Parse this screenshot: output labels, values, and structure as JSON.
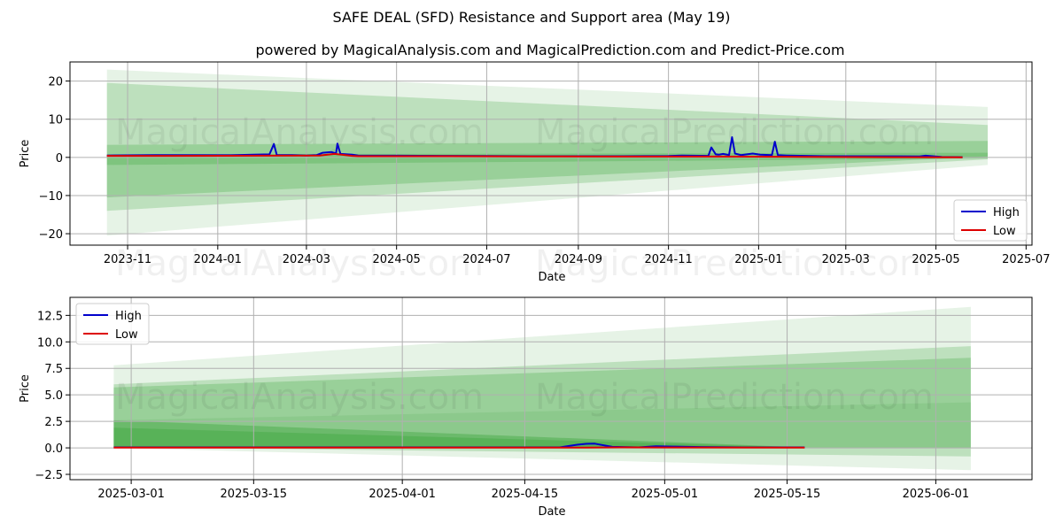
{
  "title": "SAFE DEAL (SFD) Resistance and Support area (May 19)",
  "subtitle": "powered by MagicalAnalysis.com and MagicalPrediction.com and Predict-Price.com",
  "watermarks": [
    "MagicalAnalysis.com",
    "MagicalPrediction.com"
  ],
  "colors": {
    "high": "#0000cc",
    "low": "#dd0000",
    "band": "#2e9e2e",
    "grid": "#b0b0b0"
  },
  "chart_data": [
    {
      "type": "line",
      "xlabel": "Date",
      "ylabel": "Price",
      "xlim": [
        "2023-09-23",
        "2025-07-05"
      ],
      "ylim": [
        -23,
        25
      ],
      "x_ticks": [
        "2023-11-01",
        "2024-01-01",
        "2024-03-01",
        "2024-05-01",
        "2024-07-01",
        "2024-09-01",
        "2024-11-01",
        "2025-01-01",
        "2025-03-01",
        "2025-05-01",
        "2025-07-01"
      ],
      "x_tick_labels": [
        "2023-11",
        "2024-01",
        "2024-03",
        "2024-05",
        "2024-07",
        "2024-09",
        "2024-11",
        "2025-01",
        "2025-03",
        "2025-05",
        "2025-07"
      ],
      "y_ticks": [
        -20,
        -10,
        0,
        10,
        20
      ],
      "y_tick_labels": [
        "−20",
        "−10",
        "0",
        "10",
        "20"
      ],
      "legend": "lower-right",
      "grid": true,
      "bands": [
        {
          "x0": "2023-10-18",
          "x1": "2025-06-05",
          "top0": 23.0,
          "top1": 13.2,
          "bot0": -20.5,
          "bot1": -2.0,
          "opacity": 0.12
        },
        {
          "x0": "2023-10-18",
          "x1": "2025-06-05",
          "top0": 19.5,
          "top1": 8.5,
          "bot0": -14.0,
          "bot1": -0.5,
          "opacity": 0.22
        },
        {
          "x0": "2023-10-18",
          "x1": "2025-06-05",
          "top0": 3.3,
          "top1": 4.3,
          "bot0": -10.5,
          "bot1": 0.2,
          "opacity": 0.25
        },
        {
          "x0": "2023-10-18",
          "x1": "2025-06-05",
          "top0": 0.8,
          "top1": 1.2,
          "bot0": -2.0,
          "bot1": -0.3,
          "opacity": 0.25
        }
      ],
      "series": [
        {
          "name": "High",
          "color": "#0000cc",
          "x": [
            "2023-10-18",
            "2023-11-20",
            "2024-01-10",
            "2024-01-25",
            "2024-02-05",
            "2024-02-08",
            "2024-02-10",
            "2024-02-20",
            "2024-03-01",
            "2024-03-08",
            "2024-03-12",
            "2024-03-18",
            "2024-03-21",
            "2024-03-22",
            "2024-03-24",
            "2024-04-01",
            "2024-04-05",
            "2024-05-01",
            "2024-06-01",
            "2024-07-01",
            "2024-08-01",
            "2024-09-01",
            "2024-10-01",
            "2024-11-01",
            "2024-11-10",
            "2024-11-28",
            "2024-11-30",
            "2024-12-03",
            "2024-12-05",
            "2024-12-08",
            "2024-12-12",
            "2024-12-14",
            "2024-12-16",
            "2024-12-20",
            "2024-12-28",
            "2025-01-02",
            "2025-01-10",
            "2025-01-12",
            "2025-01-14",
            "2025-01-20",
            "2025-02-15",
            "2025-04-20",
            "2025-04-24",
            "2025-05-05",
            "2025-05-19"
          ],
          "y": [
            0.5,
            0.6,
            0.55,
            0.7,
            0.8,
            3.5,
            0.6,
            0.6,
            0.5,
            0.6,
            1.2,
            1.4,
            1.0,
            3.6,
            0.9,
            0.7,
            0.5,
            0.45,
            0.4,
            0.35,
            0.3,
            0.3,
            0.3,
            0.35,
            0.5,
            0.4,
            2.6,
            0.8,
            0.7,
            0.9,
            0.6,
            5.3,
            1.0,
            0.6,
            1.0,
            0.7,
            0.6,
            4.1,
            0.6,
            0.5,
            0.3,
            0.25,
            0.45,
            0.1,
            0.05
          ]
        },
        {
          "name": "Low",
          "color": "#dd0000",
          "x": [
            "2023-10-18",
            "2023-12-01",
            "2024-02-01",
            "2024-03-10",
            "2024-03-20",
            "2024-04-01",
            "2024-04-05",
            "2024-06-01",
            "2024-08-01",
            "2024-10-01",
            "2024-12-01",
            "2025-02-01",
            "2025-04-01",
            "2025-05-19"
          ],
          "y": [
            0.4,
            0.4,
            0.45,
            0.5,
            0.9,
            0.4,
            0.3,
            0.3,
            0.25,
            0.2,
            0.2,
            0.15,
            0.05,
            0.02
          ]
        }
      ]
    },
    {
      "type": "line",
      "xlabel": "Date",
      "ylabel": "Price",
      "xlim": [
        "2025-02-22",
        "2025-06-12"
      ],
      "ylim": [
        -3.0,
        14.2
      ],
      "x_ticks": [
        "2025-03-01",
        "2025-03-15",
        "2025-04-01",
        "2025-04-15",
        "2025-05-01",
        "2025-05-15",
        "2025-06-01"
      ],
      "x_tick_labels": [
        "2025-03-01",
        "2025-03-15",
        "2025-04-01",
        "2025-04-15",
        "2025-05-01",
        "2025-05-15",
        "2025-06-01"
      ],
      "y_ticks": [
        -2.5,
        0.0,
        2.5,
        5.0,
        7.5,
        10.0,
        12.5
      ],
      "y_tick_labels": [
        "−2.5",
        "0.0",
        "2.5",
        "5.0",
        "7.5",
        "10.0",
        "12.5"
      ],
      "legend": "upper-left",
      "grid": true,
      "bands": [
        {
          "x0": "2025-02-27",
          "x1": "2025-06-05",
          "top0": 7.8,
          "top1": 13.3,
          "bot0": 0.0,
          "bot1": -2.1,
          "opacity": 0.12
        },
        {
          "x0": "2025-02-27",
          "x1": "2025-06-05",
          "top0": 6.0,
          "top1": 9.6,
          "bot0": 0.05,
          "bot1": -0.8,
          "opacity": 0.22
        },
        {
          "x0": "2025-02-27",
          "x1": "2025-06-05",
          "top0": 5.7,
          "top1": 8.5,
          "bot0": 0.1,
          "bot1": 0.0,
          "opacity": 0.25
        },
        {
          "x0": "2025-02-27",
          "x1": "2025-06-05",
          "top0": 2.6,
          "top1": 4.3,
          "bot0": 0.1,
          "bot1": 0.0,
          "opacity": 0.12
        },
        {
          "x0": "2025-02-27",
          "x1": "2025-05-17",
          "top0": 2.6,
          "top1": 0.05,
          "bot0": 0.05,
          "bot1": 0.0,
          "opacity": 0.35
        },
        {
          "x0": "2025-02-27",
          "x1": "2025-05-17",
          "top0": 1.9,
          "top1": 0.05,
          "bot0": 0.05,
          "bot1": 0.0,
          "opacity": 0.3
        }
      ],
      "series": [
        {
          "name": "High",
          "color": "#0000cc",
          "x": [
            "2025-02-27",
            "2025-03-15",
            "2025-04-01",
            "2025-04-19",
            "2025-04-21",
            "2025-04-22",
            "2025-04-23",
            "2025-04-25",
            "2025-04-28",
            "2025-04-30",
            "2025-05-02",
            "2025-05-05",
            "2025-05-10",
            "2025-05-17"
          ],
          "y": [
            0.05,
            0.05,
            0.05,
            0.05,
            0.3,
            0.38,
            0.4,
            0.1,
            0.05,
            0.15,
            0.12,
            0.08,
            0.05,
            0.05
          ]
        },
        {
          "name": "Low",
          "color": "#dd0000",
          "x": [
            "2025-02-27",
            "2025-03-15",
            "2025-04-01",
            "2025-04-20",
            "2025-04-22",
            "2025-04-26",
            "2025-05-01",
            "2025-05-17"
          ],
          "y": [
            0.03,
            0.03,
            0.03,
            0.03,
            0.03,
            0.05,
            0.04,
            0.03
          ]
        }
      ]
    }
  ]
}
